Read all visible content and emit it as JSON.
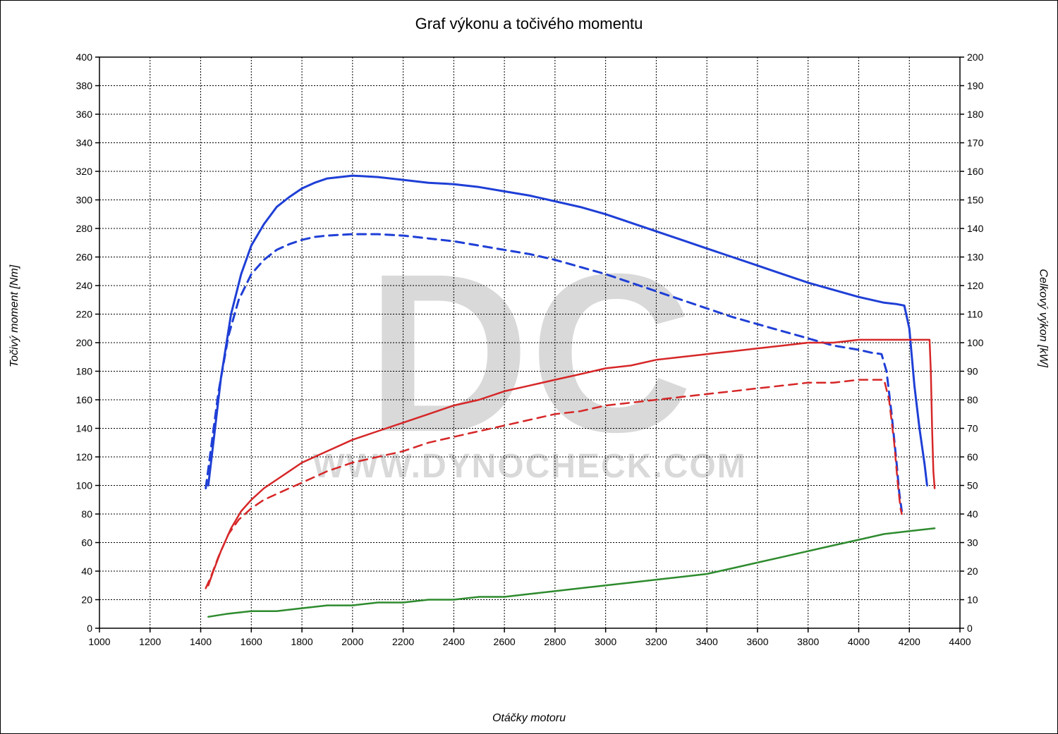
{
  "title": "Graf výkonu a točivého momentu",
  "axes": {
    "x": {
      "label": "Otáčky motoru",
      "min": 1000,
      "max": 4400,
      "tick_step": 200,
      "label_fontsize": 16,
      "tick_fontsize": 14,
      "font_style": "italic",
      "color": "#000000"
    },
    "y_left": {
      "label": "Točivý moment [Nm]",
      "min": 0,
      "max": 400,
      "tick_step": 20,
      "label_fontsize": 16,
      "tick_fontsize": 14,
      "font_style": "italic",
      "color": "#000000"
    },
    "y_right": {
      "label": "Celkový výkon [kW]",
      "min": 0,
      "max": 200,
      "tick_step": 10,
      "label_fontsize": 16,
      "tick_fontsize": 14,
      "font_style": "italic",
      "color": "#000000"
    }
  },
  "grid": {
    "line_color": "#000000",
    "dash": "2,2",
    "line_width": 1,
    "border_color": "#000000",
    "border_width": 1.5
  },
  "background_color": "#ffffff",
  "watermark": {
    "text_top": "DC",
    "text_bottom": "WWW.DYNOCHECK.COM",
    "color": "#d9d9d9",
    "top_fontsize": 320,
    "top_fontweight": "900",
    "bottom_fontsize": 48,
    "bottom_fontweight": "700"
  },
  "series": [
    {
      "name": "torque-solid",
      "axis": "left",
      "color": "#1f3fd6",
      "line_width": 3,
      "dash": null,
      "points": [
        [
          1430,
          100
        ],
        [
          1450,
          130
        ],
        [
          1480,
          175
        ],
        [
          1520,
          220
        ],
        [
          1560,
          248
        ],
        [
          1600,
          268
        ],
        [
          1650,
          283
        ],
        [
          1700,
          295
        ],
        [
          1750,
          302
        ],
        [
          1800,
          308
        ],
        [
          1850,
          312
        ],
        [
          1900,
          315
        ],
        [
          1950,
          316
        ],
        [
          2000,
          317
        ],
        [
          2100,
          316
        ],
        [
          2200,
          314
        ],
        [
          2300,
          312
        ],
        [
          2400,
          311
        ],
        [
          2500,
          309
        ],
        [
          2600,
          306
        ],
        [
          2700,
          303
        ],
        [
          2800,
          299
        ],
        [
          2900,
          295
        ],
        [
          3000,
          290
        ],
        [
          3100,
          284
        ],
        [
          3200,
          278
        ],
        [
          3300,
          272
        ],
        [
          3400,
          266
        ],
        [
          3500,
          260
        ],
        [
          3600,
          254
        ],
        [
          3700,
          248
        ],
        [
          3800,
          242
        ],
        [
          3900,
          237
        ],
        [
          4000,
          232
        ],
        [
          4100,
          228
        ],
        [
          4150,
          227
        ],
        [
          4180,
          226
        ],
        [
          4200,
          210
        ],
        [
          4220,
          170
        ],
        [
          4240,
          140
        ],
        [
          4260,
          115
        ],
        [
          4270,
          100
        ]
      ]
    },
    {
      "name": "torque-dashed",
      "axis": "left",
      "color": "#1f3fd6",
      "line_width": 3,
      "dash": "12,8",
      "points": [
        [
          1420,
          98
        ],
        [
          1440,
          125
        ],
        [
          1470,
          165
        ],
        [
          1510,
          205
        ],
        [
          1550,
          230
        ],
        [
          1600,
          248
        ],
        [
          1650,
          258
        ],
        [
          1700,
          265
        ],
        [
          1750,
          269
        ],
        [
          1800,
          272
        ],
        [
          1850,
          274
        ],
        [
          1900,
          275
        ],
        [
          2000,
          276
        ],
        [
          2100,
          276
        ],
        [
          2200,
          275
        ],
        [
          2300,
          273
        ],
        [
          2400,
          271
        ],
        [
          2500,
          268
        ],
        [
          2600,
          265
        ],
        [
          2700,
          262
        ],
        [
          2800,
          258
        ],
        [
          2900,
          253
        ],
        [
          3000,
          248
        ],
        [
          3100,
          242
        ],
        [
          3200,
          236
        ],
        [
          3300,
          230
        ],
        [
          3400,
          224
        ],
        [
          3500,
          218
        ],
        [
          3600,
          213
        ],
        [
          3700,
          208
        ],
        [
          3800,
          203
        ],
        [
          3900,
          198
        ],
        [
          4000,
          195
        ],
        [
          4050,
          193
        ],
        [
          4090,
          192
        ],
        [
          4110,
          180
        ],
        [
          4130,
          150
        ],
        [
          4150,
          115
        ],
        [
          4160,
          95
        ],
        [
          4170,
          82
        ]
      ]
    },
    {
      "name": "power-solid",
      "axis": "right",
      "color": "#d62728",
      "line_width": 2.5,
      "dash": null,
      "points": [
        [
          1430,
          15
        ],
        [
          1450,
          20
        ],
        [
          1480,
          27
        ],
        [
          1520,
          35
        ],
        [
          1560,
          41
        ],
        [
          1600,
          45
        ],
        [
          1650,
          49
        ],
        [
          1700,
          52
        ],
        [
          1750,
          55
        ],
        [
          1800,
          58
        ],
        [
          1850,
          60
        ],
        [
          1900,
          62
        ],
        [
          2000,
          66
        ],
        [
          2100,
          69
        ],
        [
          2200,
          72
        ],
        [
          2300,
          75
        ],
        [
          2400,
          78
        ],
        [
          2500,
          80
        ],
        [
          2600,
          83
        ],
        [
          2700,
          85
        ],
        [
          2800,
          87
        ],
        [
          2900,
          89
        ],
        [
          3000,
          91
        ],
        [
          3100,
          92
        ],
        [
          3200,
          94
        ],
        [
          3300,
          95
        ],
        [
          3400,
          96
        ],
        [
          3500,
          97
        ],
        [
          3600,
          98
        ],
        [
          3700,
          99
        ],
        [
          3800,
          100
        ],
        [
          3900,
          100
        ],
        [
          4000,
          101
        ],
        [
          4100,
          101
        ],
        [
          4150,
          101
        ],
        [
          4200,
          101
        ],
        [
          4250,
          101
        ],
        [
          4280,
          101
        ],
        [
          4285,
          90
        ],
        [
          4290,
          70
        ],
        [
          4295,
          55
        ],
        [
          4300,
          49
        ]
      ]
    },
    {
      "name": "power-dashed",
      "axis": "right",
      "color": "#d62728",
      "line_width": 2.5,
      "dash": "12,8",
      "points": [
        [
          1420,
          14
        ],
        [
          1440,
          18
        ],
        [
          1470,
          25
        ],
        [
          1510,
          33
        ],
        [
          1550,
          38
        ],
        [
          1600,
          42
        ],
        [
          1650,
          45
        ],
        [
          1700,
          47
        ],
        [
          1750,
          49
        ],
        [
          1800,
          51
        ],
        [
          1850,
          53
        ],
        [
          1900,
          55
        ],
        [
          2000,
          58
        ],
        [
          2100,
          60
        ],
        [
          2200,
          62
        ],
        [
          2300,
          65
        ],
        [
          2400,
          67
        ],
        [
          2500,
          69
        ],
        [
          2600,
          71
        ],
        [
          2700,
          73
        ],
        [
          2800,
          75
        ],
        [
          2900,
          76
        ],
        [
          3000,
          78
        ],
        [
          3100,
          79
        ],
        [
          3200,
          80
        ],
        [
          3300,
          81
        ],
        [
          3400,
          82
        ],
        [
          3500,
          83
        ],
        [
          3600,
          84
        ],
        [
          3700,
          85
        ],
        [
          3800,
          86
        ],
        [
          3900,
          86
        ],
        [
          4000,
          87
        ],
        [
          4050,
          87
        ],
        [
          4100,
          87
        ],
        [
          4120,
          80
        ],
        [
          4140,
          65
        ],
        [
          4155,
          50
        ],
        [
          4165,
          42
        ],
        [
          4170,
          40
        ]
      ]
    },
    {
      "name": "loss-solid",
      "axis": "right",
      "color": "#2e8b2e",
      "line_width": 2.5,
      "dash": null,
      "points": [
        [
          1430,
          4
        ],
        [
          1500,
          5
        ],
        [
          1600,
          6
        ],
        [
          1700,
          6
        ],
        [
          1800,
          7
        ],
        [
          1900,
          8
        ],
        [
          2000,
          8
        ],
        [
          2100,
          9
        ],
        [
          2200,
          9
        ],
        [
          2300,
          10
        ],
        [
          2400,
          10
        ],
        [
          2500,
          11
        ],
        [
          2600,
          11
        ],
        [
          2700,
          12
        ],
        [
          2800,
          13
        ],
        [
          2900,
          14
        ],
        [
          3000,
          15
        ],
        [
          3100,
          16
        ],
        [
          3200,
          17
        ],
        [
          3300,
          18
        ],
        [
          3400,
          19
        ],
        [
          3500,
          21
        ],
        [
          3600,
          23
        ],
        [
          3700,
          25
        ],
        [
          3800,
          27
        ],
        [
          3900,
          29
        ],
        [
          4000,
          31
        ],
        [
          4100,
          33
        ],
        [
          4200,
          34
        ],
        [
          4300,
          35
        ]
      ]
    }
  ]
}
